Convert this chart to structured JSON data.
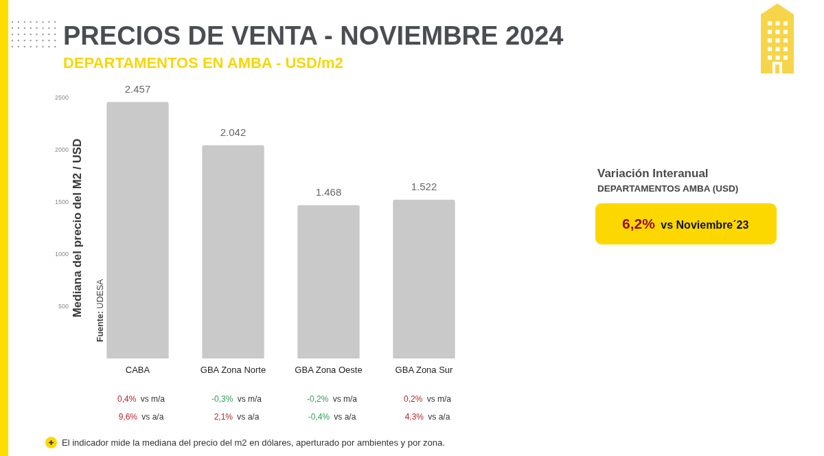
{
  "chart_data": {
    "type": "bar",
    "title": "PRECIOS DE VENTA - NOVIEMBRE 2024",
    "subtitle": "DEPARTAMENTOS EN AMBA - USD/m2",
    "ylabel": "Mediana del precio del M2 / USD",
    "categories": [
      "CABA",
      "GBA Zona Norte",
      "GBA Zona Oeste",
      "GBA Zona Sur"
    ],
    "values": [
      2457,
      2042,
      1468,
      1522
    ],
    "value_labels": [
      "2.457",
      "2.042",
      "1.468",
      "1.522"
    ],
    "color": "#c9c9c9",
    "ylim": [
      0,
      2500
    ],
    "yticks": [
      500,
      1000,
      1500,
      2000,
      2500
    ],
    "grid": false,
    "annotations": [
      "Fuente: UDESA",
      "0,4% vs m/a",
      "9,6% vs a/a",
      "-0,3% vs m/a",
      "2,1% vs a/a",
      "-0,2% vs m/a",
      "-0,4% vs a/a",
      "0,2% vs m/a",
      "4,3% vs a/a",
      "Variación Interanual",
      "DEPARTAMENTOS AMBA (USD)",
      "6,2% vs Noviembre´23",
      "El indicador mide la mediana del precio del m2 en dólares, aperturado por ambientes y por zona."
    ]
  }
}
